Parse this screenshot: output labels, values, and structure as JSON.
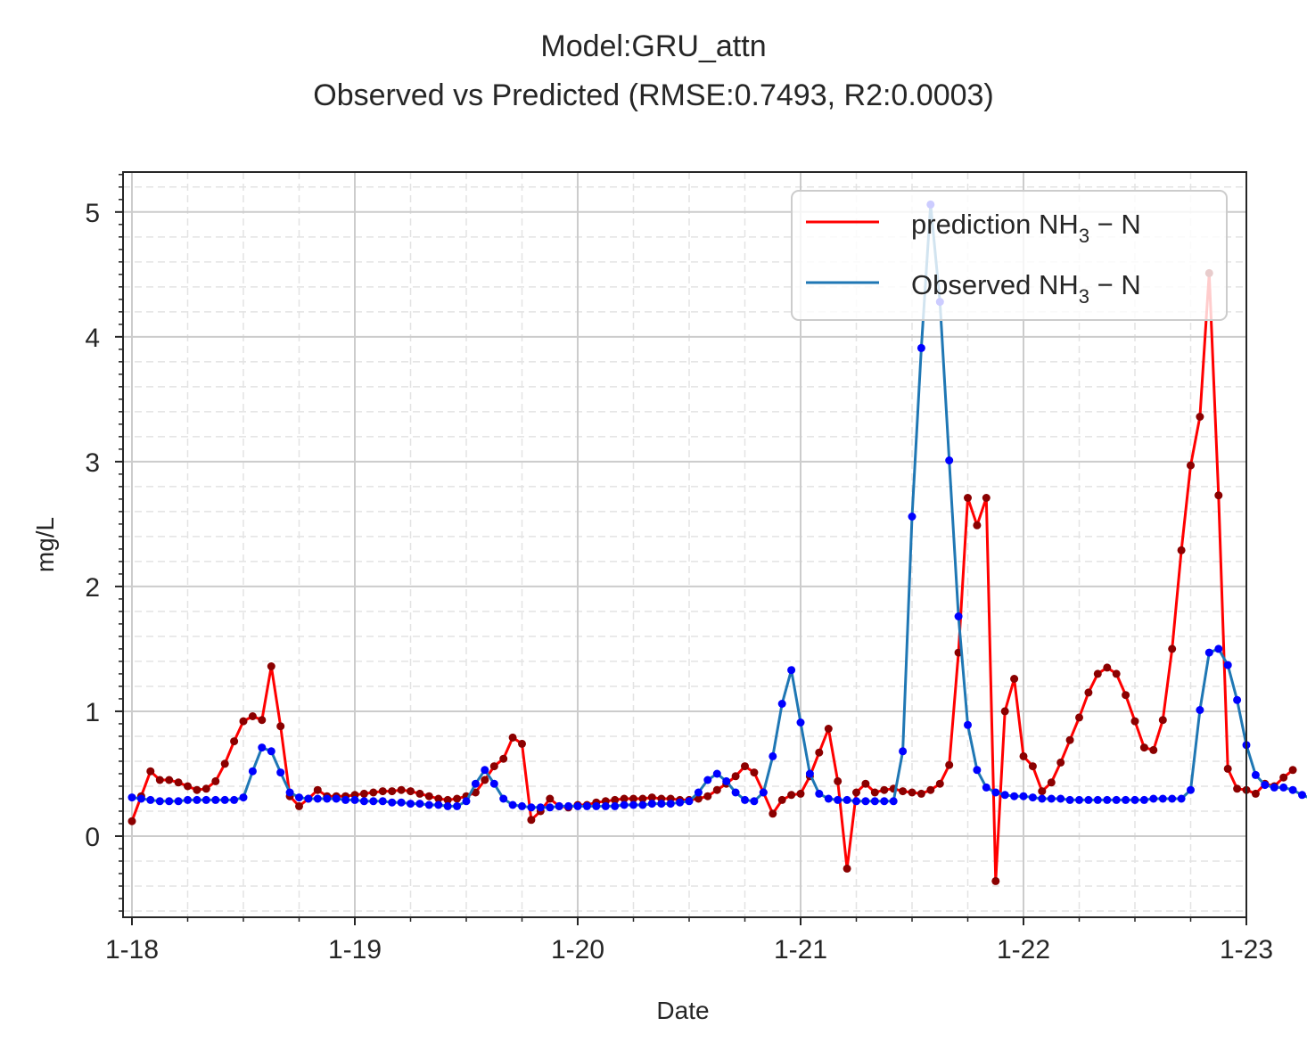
{
  "chart_data": {
    "type": "line",
    "title": "Model:GRU_attn",
    "subtitle": "Observed vs Predicted (RMSE:0.7493, R2:0.0003)",
    "xlabel": "Date",
    "ylabel": "mg/L",
    "xlim": [
      17.96,
      23.0
    ],
    "ylim": [
      -0.65,
      5.32
    ],
    "x_ticks": [
      18,
      19,
      20,
      21,
      22,
      23
    ],
    "x_tick_labels": [
      "1-18",
      "1-19",
      "1-20",
      "1-21",
      "1-22",
      "1-23"
    ],
    "y_ticks": [
      0,
      1,
      2,
      3,
      4,
      5
    ],
    "y_tick_labels": [
      "0",
      "1",
      "2",
      "3",
      "4",
      "5"
    ],
    "grid": true,
    "minor_grid": true,
    "legend": "upper right",
    "sample_step_days": 0.041667,
    "x_start": 18.0,
    "series": [
      {
        "name_main": "prediction NH",
        "name_sub": "3",
        "name_tail": " − N",
        "line_color": "#ff0000",
        "marker_color": "#8b0000",
        "values": [
          0.12,
          0.32,
          0.52,
          0.45,
          0.45,
          0.43,
          0.4,
          0.37,
          0.38,
          0.44,
          0.58,
          0.76,
          0.92,
          0.96,
          0.93,
          1.36,
          0.88,
          0.32,
          0.24,
          0.3,
          0.37,
          0.32,
          0.32,
          0.32,
          0.33,
          0.34,
          0.35,
          0.36,
          0.36,
          0.37,
          0.36,
          0.34,
          0.32,
          0.3,
          0.29,
          0.3,
          0.32,
          0.35,
          0.45,
          0.56,
          0.62,
          0.79,
          0.74,
          0.13,
          0.2,
          0.3,
          0.24,
          0.23,
          0.25,
          0.25,
          0.27,
          0.28,
          0.29,
          0.3,
          0.3,
          0.3,
          0.31,
          0.3,
          0.3,
          0.29,
          0.29,
          0.3,
          0.32,
          0.37,
          0.42,
          0.48,
          0.56,
          0.51,
          0.35,
          0.18,
          0.29,
          0.33,
          0.34,
          0.48,
          0.67,
          0.86,
          0.44,
          -0.26,
          0.35,
          0.42,
          0.35,
          0.37,
          0.38,
          0.36,
          0.35,
          0.34,
          0.37,
          0.42,
          0.57,
          1.47,
          2.71,
          2.49,
          2.71,
          -0.36,
          1.0,
          1.26,
          0.64,
          0.56,
          0.36,
          0.43,
          0.59,
          0.77,
          0.95,
          1.15,
          1.3,
          1.35,
          1.3,
          1.13,
          0.92,
          0.71,
          0.69,
          0.93,
          1.5,
          2.29,
          2.97,
          3.36,
          4.51,
          2.73,
          0.54,
          0.38,
          0.37,
          0.34,
          0.42,
          0.4,
          0.47,
          0.53
        ]
      },
      {
        "name_main": "Observed NH",
        "name_sub": "3",
        "name_tail": " − N",
        "line_color": "#1f77b4",
        "marker_color": "#0000ff",
        "values": [
          0.31,
          0.3,
          0.29,
          0.28,
          0.28,
          0.28,
          0.29,
          0.29,
          0.29,
          0.29,
          0.29,
          0.29,
          0.31,
          0.52,
          0.71,
          0.68,
          0.51,
          0.35,
          0.31,
          0.3,
          0.3,
          0.3,
          0.3,
          0.29,
          0.29,
          0.28,
          0.28,
          0.28,
          0.27,
          0.27,
          0.26,
          0.26,
          0.25,
          0.25,
          0.24,
          0.24,
          0.28,
          0.42,
          0.53,
          0.42,
          0.3,
          0.25,
          0.24,
          0.23,
          0.23,
          0.23,
          0.24,
          0.24,
          0.24,
          0.24,
          0.24,
          0.24,
          0.24,
          0.25,
          0.25,
          0.25,
          0.26,
          0.26,
          0.26,
          0.27,
          0.28,
          0.35,
          0.45,
          0.5,
          0.44,
          0.35,
          0.29,
          0.28,
          0.35,
          0.64,
          1.06,
          1.33,
          0.91,
          0.5,
          0.34,
          0.3,
          0.29,
          0.29,
          0.28,
          0.28,
          0.28,
          0.28,
          0.28,
          0.68,
          2.56,
          3.91,
          5.06,
          4.28,
          3.01,
          1.76,
          0.89,
          0.53,
          0.39,
          0.35,
          0.33,
          0.32,
          0.32,
          0.31,
          0.3,
          0.3,
          0.3,
          0.29,
          0.29,
          0.29,
          0.29,
          0.29,
          0.29,
          0.29,
          0.29,
          0.29,
          0.3,
          0.3,
          0.3,
          0.3,
          0.37,
          1.01,
          1.47,
          1.5,
          1.37,
          1.09,
          0.73,
          0.49,
          0.41,
          0.39,
          0.39,
          0.37,
          0.33,
          0.3,
          0.29
        ]
      }
    ]
  }
}
